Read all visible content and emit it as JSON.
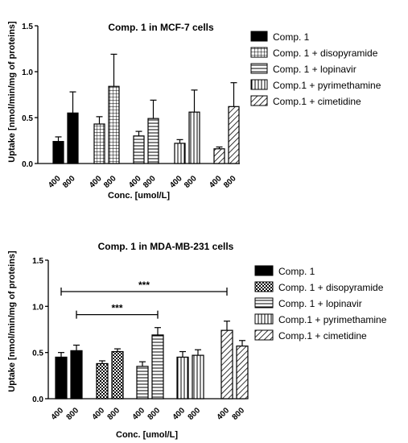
{
  "chart_data": [
    {
      "type": "bar",
      "title": "Comp. 1 in MCF-7 cells",
      "xlabel": "Conc. [umol/L]",
      "ylabel": "Uptake [nmol/min/mg of proteins]",
      "ylim": [
        0,
        1.5
      ],
      "yticks": [
        "0.0",
        "0.5",
        "1.0",
        "1.5"
      ],
      "legend_position": "top-right",
      "series": [
        {
          "name": "Comp. 1",
          "pattern": "solid",
          "categories": [
            "400",
            "800"
          ],
          "values": [
            0.24,
            0.55
          ],
          "errors": [
            0.05,
            0.23
          ]
        },
        {
          "name": "Comp. 1 + disopyramide",
          "pattern": "grid",
          "categories": [
            "400",
            "800"
          ],
          "values": [
            0.43,
            0.84
          ],
          "errors": [
            0.08,
            0.35
          ]
        },
        {
          "name": "Comp. 1 + lopinavir",
          "pattern": "horizontal",
          "categories": [
            "400",
            "800"
          ],
          "values": [
            0.3,
            0.49
          ],
          "errors": [
            0.05,
            0.2
          ]
        },
        {
          "name": "Comp.1 + pyrimethamine",
          "pattern": "vertical",
          "categories": [
            "400",
            "800"
          ],
          "values": [
            0.22,
            0.56
          ],
          "errors": [
            0.04,
            0.24
          ]
        },
        {
          "name": "Comp.1 + cimetidine",
          "pattern": "diagonal",
          "categories": [
            "400",
            "800"
          ],
          "values": [
            0.16,
            0.62
          ],
          "errors": [
            0.02,
            0.26
          ]
        }
      ],
      "significance": []
    },
    {
      "type": "bar",
      "title": "Comp. 1 in MDA-MB-231 cells",
      "xlabel": "Conc. [umol/L]",
      "ylabel": "Uptake [nmol/min/mg of proteins]",
      "ylim": [
        0,
        1.5
      ],
      "yticks": [
        "0.0",
        "0.5",
        "1.0",
        "1.5"
      ],
      "legend_position": "top-right",
      "series": [
        {
          "name": "Comp. 1",
          "pattern": "solid",
          "categories": [
            "400",
            "800"
          ],
          "values": [
            0.45,
            0.52
          ],
          "errors": [
            0.05,
            0.06
          ]
        },
        {
          "name": "Comp. 1 + disopyramide",
          "pattern": "checker",
          "categories": [
            "400",
            "800"
          ],
          "values": [
            0.38,
            0.51
          ],
          "errors": [
            0.03,
            0.03
          ]
        },
        {
          "name": "Comp. 1 + lopinavir",
          "pattern": "horizontal",
          "categories": [
            "400",
            "800"
          ],
          "values": [
            0.35,
            0.69
          ],
          "errors": [
            0.05,
            0.08
          ]
        },
        {
          "name": "Comp.1 + pyrimethamine",
          "pattern": "vertical",
          "categories": [
            "400",
            "800"
          ],
          "values": [
            0.45,
            0.47
          ],
          "errors": [
            0.06,
            0.06
          ]
        },
        {
          "name": "Comp.1 + cimetidine",
          "pattern": "diagonal",
          "categories": [
            "400",
            "800"
          ],
          "values": [
            0.74,
            0.57
          ],
          "errors": [
            0.1,
            0.06
          ]
        }
      ],
      "significance": [
        {
          "label": "***",
          "from": [
            0,
            0
          ],
          "to": [
            4,
            0
          ],
          "y": 1.16
        },
        {
          "label": "***",
          "from": [
            0,
            1
          ],
          "to": [
            2,
            1
          ],
          "y": 0.91
        }
      ]
    }
  ]
}
